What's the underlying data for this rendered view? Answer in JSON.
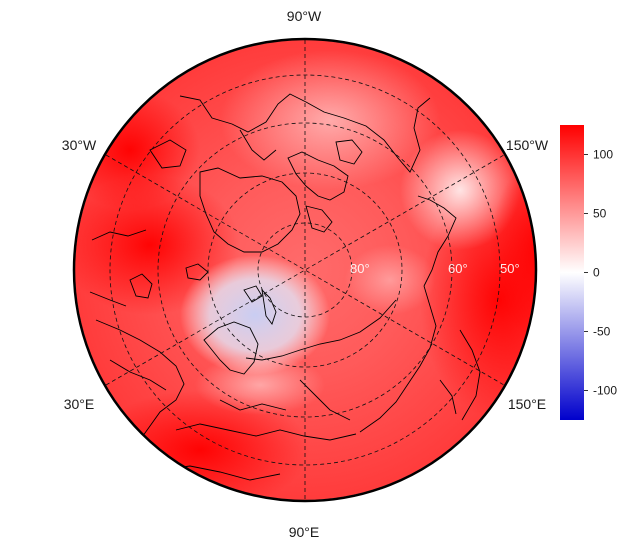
{
  "map": {
    "projection": "north-polar-stereographic",
    "lon_labels": [
      "90°W",
      "30°W",
      "150°W",
      "30°E",
      "150°E",
      "90°E"
    ],
    "lat_labels": [
      "80°",
      "60°",
      "50°"
    ]
  },
  "colorbar": {
    "ticks": [
      "100",
      "50",
      "0",
      "-50",
      "-100"
    ],
    "tick_values": [
      100,
      50,
      0,
      -50,
      -100
    ],
    "range": [
      -125,
      125
    ],
    "colors": {
      "high": "#ff0000",
      "mid": "#ffffff",
      "low": "#0000cc"
    }
  }
}
